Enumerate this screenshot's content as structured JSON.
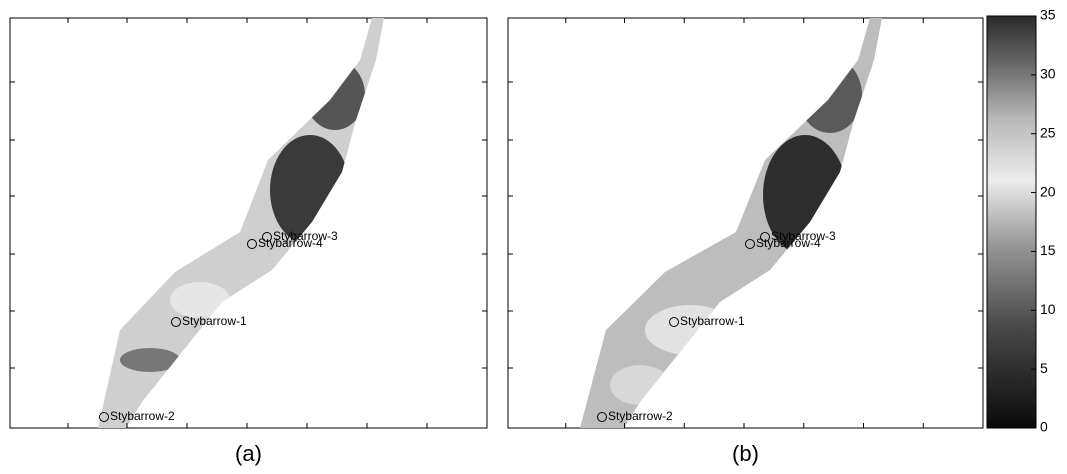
{
  "panels": [
    {
      "label": "(a)",
      "wells": [
        "Stybarrow-3",
        "Stybarrow-4",
        "Stybarrow-1",
        "Stybarrow-2"
      ]
    },
    {
      "label": "(b)",
      "wells": [
        "Stybarrow-3",
        "Stybarrow-4",
        "Stybarrow-1",
        "Stybarrow-2"
      ]
    }
  ],
  "colorbar": {
    "ticks": [
      0,
      5,
      10,
      15,
      20,
      25,
      30,
      35
    ],
    "range": [
      0,
      35
    ]
  }
}
